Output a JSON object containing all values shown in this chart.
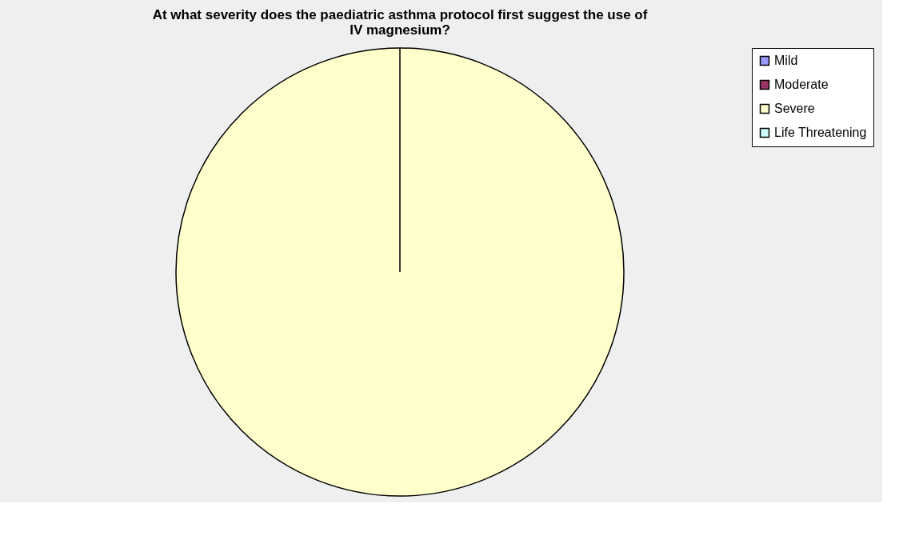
{
  "chart_data": {
    "type": "pie",
    "title": [
      "At what severity does the paediatric asthma protocol first suggest the use of",
      "IV magnesium?"
    ],
    "categories": [
      "Mild",
      "Moderate",
      "Severe",
      "Life Threatening"
    ],
    "values": [
      0,
      0,
      100,
      0
    ],
    "colors": [
      "#9999ff",
      "#993366",
      "#ffffcc",
      "#ccffff"
    ],
    "legend": "right"
  }
}
